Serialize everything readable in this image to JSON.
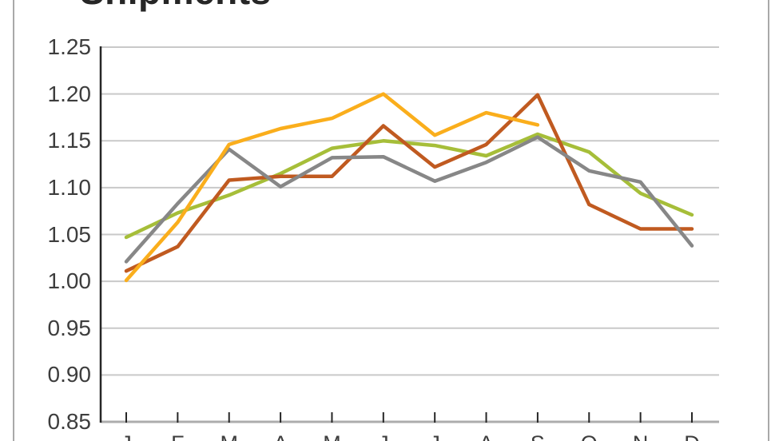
{
  "title": "Shipments",
  "chart_data": {
    "type": "line",
    "title": "Shipments",
    "categories": [
      "J",
      "F",
      "M",
      "A",
      "M",
      "J",
      "J",
      "A",
      "S",
      "O",
      "N",
      "D"
    ],
    "y_tick_labels": [
      "1.25",
      "1.20",
      "1.15",
      "1.10",
      "1.05",
      "1.00",
      "0.95",
      "0.90",
      "0.85"
    ],
    "ylim": [
      0.85,
      1.25
    ],
    "y_step": 0.05,
    "grid": "horizontal-on",
    "legend": "not-visible",
    "series": [
      {
        "name": "green-series",
        "color": "#a6be39",
        "values": [
          1.047,
          1.073,
          1.092,
          1.115,
          1.142,
          1.15,
          1.145,
          1.134,
          1.157,
          1.138,
          1.094,
          1.071
        ]
      },
      {
        "name": "brown-series",
        "color": "#c05a20",
        "values": [
          1.011,
          1.037,
          1.108,
          1.112,
          1.112,
          1.166,
          1.122,
          1.146,
          1.199,
          1.082,
          1.056,
          1.056
        ]
      },
      {
        "name": "gray-series",
        "color": "#878787",
        "values": [
          1.021,
          1.083,
          1.141,
          1.101,
          1.132,
          1.133,
          1.107,
          1.127,
          1.154,
          1.118,
          1.106,
          1.038
        ]
      },
      {
        "name": "amber-series",
        "color": "#faae1c",
        "values": [
          1.001,
          1.063,
          1.146,
          1.163,
          1.174,
          1.2,
          1.156,
          1.18,
          1.167,
          null,
          null,
          null
        ]
      }
    ],
    "colors": {
      "gridline": "#c9c9c9",
      "bottom_axis": "#acacac",
      "left_spine": "#262626",
      "tick_mark": "#262626",
      "tick_text": "#3d3d3d",
      "title_text": "#262626",
      "frame_border": "#a9a9a9"
    }
  }
}
